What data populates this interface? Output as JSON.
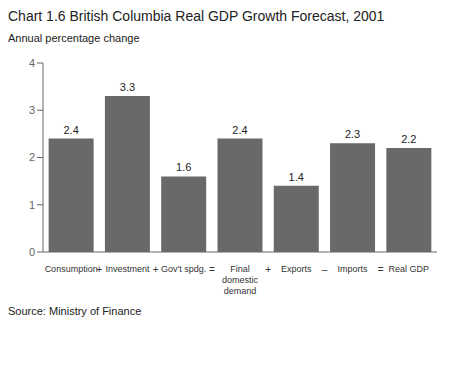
{
  "chart_data": {
    "type": "bar",
    "title": "Chart 1.6 British Columbia Real GDP Growth Forecast, 2001",
    "y_label": "Annual percentage change",
    "source": "Source: Ministry of Finance",
    "categories": [
      "Consumption",
      "Investment",
      "Gov't spdg.",
      "Final\ndomestic\ndemand",
      "Exports",
      "Imports",
      "Real GDP"
    ],
    "values": [
      2.4,
      3.3,
      1.6,
      2.4,
      1.4,
      2.3,
      2.2
    ],
    "annotations": [
      "+",
      "+",
      "=",
      "+",
      "–",
      "="
    ],
    "color": "#696969",
    "ylim": [
      0,
      4
    ],
    "yticks": [
      0,
      1,
      2,
      3,
      4
    ],
    "grid": false,
    "data_labels": true
  }
}
